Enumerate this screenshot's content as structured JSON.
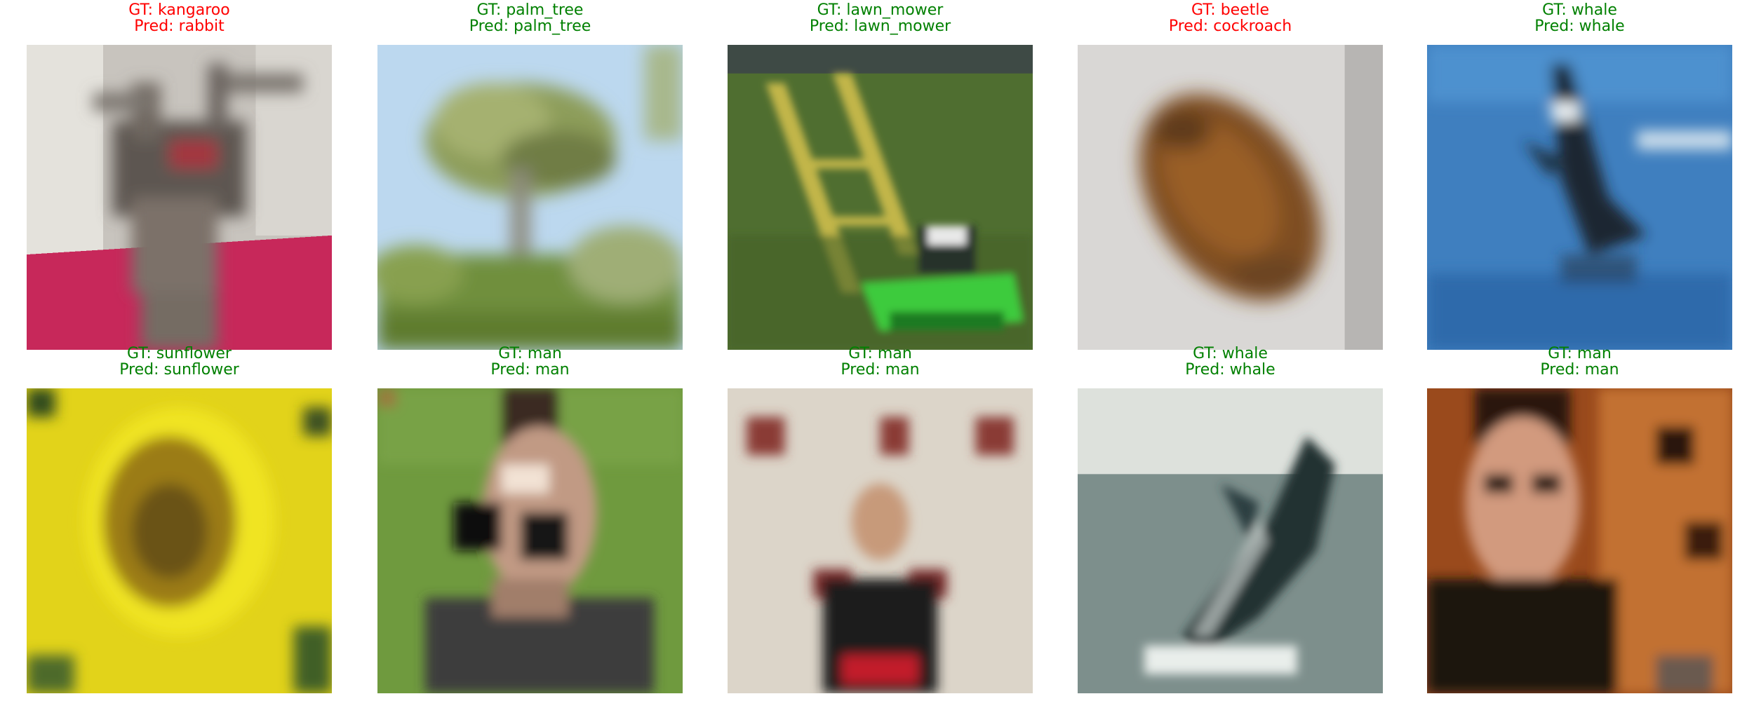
{
  "correct_color": "#008000",
  "wrong_color": "#ff0000",
  "samples": [
    {
      "gt": "GT: kangaroo",
      "pred": "Pred: rabbit",
      "correct": false
    },
    {
      "gt": "GT: palm_tree",
      "pred": "Pred: palm_tree",
      "correct": true
    },
    {
      "gt": "GT: lawn_mower",
      "pred": "Pred: lawn_mower",
      "correct": true
    },
    {
      "gt": "GT: beetle",
      "pred": "Pred: cockroach",
      "correct": false
    },
    {
      "gt": "GT: whale",
      "pred": "Pred: whale",
      "correct": true
    },
    {
      "gt": "GT: sunflower",
      "pred": "Pred: sunflower",
      "correct": true
    },
    {
      "gt": "GT: man",
      "pred": "Pred: man",
      "correct": true
    },
    {
      "gt": "GT: man",
      "pred": "Pred: man",
      "correct": true
    },
    {
      "gt": "GT: whale",
      "pred": "Pred: whale",
      "correct": true
    },
    {
      "gt": "GT: man",
      "pred": "Pred: man",
      "correct": true
    }
  ]
}
